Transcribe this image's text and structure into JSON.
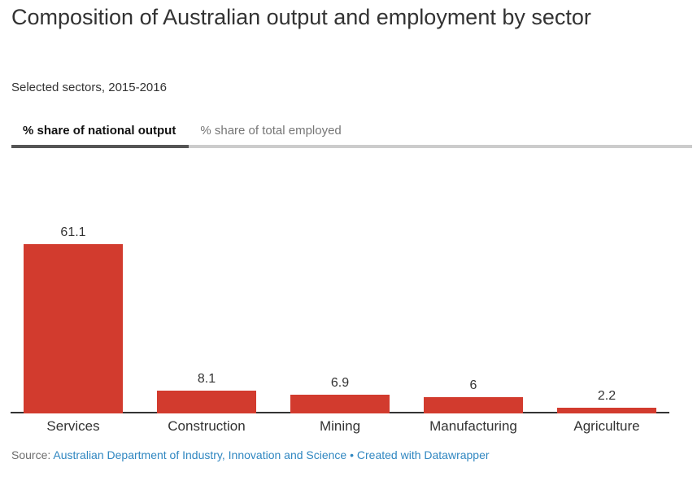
{
  "header": {
    "title": "Composition of Australian output and employment by sector",
    "subtitle": "Selected sectors, 2015-2016"
  },
  "tabs": [
    {
      "label": "% share of national output",
      "active": true
    },
    {
      "label": "% share of total employed",
      "active": false
    }
  ],
  "chart_data": {
    "type": "bar",
    "title": "Composition of Australian output and employment by sector",
    "subtitle": "Selected sectors, 2015-2016",
    "categories": [
      "Services",
      "Construction",
      "Mining",
      "Manufacturing",
      "Agriculture"
    ],
    "values": [
      61.1,
      8.1,
      6.9,
      6,
      2.2
    ],
    "value_labels": [
      "61.1",
      "8.1",
      "6.9",
      "6",
      "2.2"
    ],
    "xlabel": "",
    "ylabel": "",
    "ylim": [
      0,
      61.1
    ],
    "grid": false,
    "legend": "none",
    "bar_color": "#d23b2e"
  },
  "footer": {
    "source_label": "Source:",
    "source_link": "Australian Department of Industry, Innovation and Science",
    "separator": "•",
    "credit_link": "Created with Datawrapper"
  },
  "colors": {
    "bar": "#d23b2e",
    "link": "#3087c1",
    "tab_active_underline": "#555555",
    "tab_rule": "#cccccc",
    "axis": "#333333",
    "text": "#333333",
    "muted_text": "#6e6e6e"
  }
}
